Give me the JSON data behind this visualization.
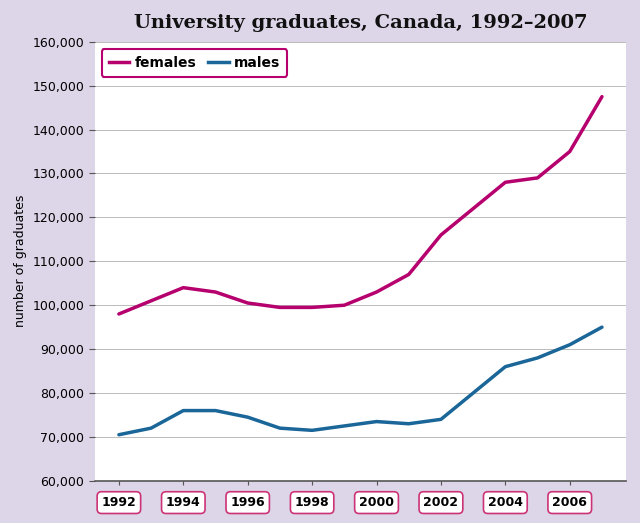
{
  "title": "University graduates, Canada, 1992–2007",
  "ylabel": "number of graduates",
  "years": [
    1992,
    1993,
    1994,
    1995,
    1996,
    1997,
    1998,
    1999,
    2000,
    2001,
    2002,
    2003,
    2004,
    2005,
    2006,
    2007
  ],
  "females": [
    98000,
    101000,
    104000,
    103000,
    100500,
    99500,
    99500,
    100000,
    103000,
    107000,
    116000,
    122000,
    128000,
    129000,
    135000,
    147500
  ],
  "males": [
    70500,
    72000,
    76000,
    76000,
    74500,
    72000,
    71500,
    72500,
    73500,
    73000,
    74000,
    80000,
    86000,
    88000,
    91000,
    95000
  ],
  "female_color": "#b5006e",
  "male_color": "#1a6699",
  "ylim": [
    60000,
    160000
  ],
  "yticks": [
    60000,
    70000,
    80000,
    90000,
    100000,
    110000,
    120000,
    130000,
    140000,
    150000,
    160000
  ],
  "xticks": [
    1992,
    1994,
    1996,
    1998,
    2000,
    2002,
    2004,
    2006
  ],
  "plot_bg_color": "#ffffff",
  "grid_color": "#bbbbbb",
  "title_fontsize": 14,
  "axis_fontsize": 9,
  "tick_fontsize": 9,
  "line_width": 2.5,
  "spine_color": "#555555",
  "tick_border_color": "#cc3377"
}
